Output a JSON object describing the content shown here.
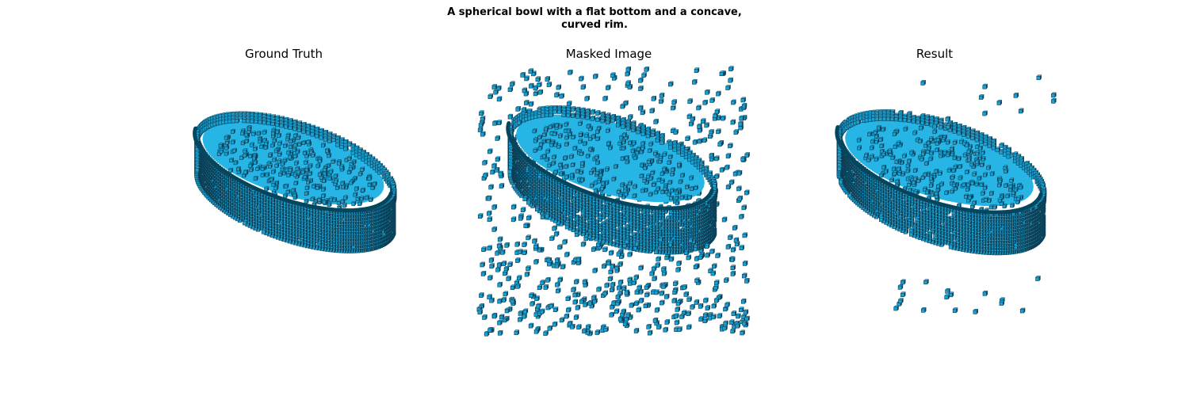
{
  "figure": {
    "title_line1": "A spherical bowl with a flat bottom and a concave,",
    "title_line2": "curved rim."
  },
  "panels": [
    {
      "title": "Ground Truth"
    },
    {
      "title": "Masked Image"
    },
    {
      "title": "Result"
    }
  ],
  "colors": {
    "voxel_face": "#1a9fd1",
    "voxel_top": "#27b5e6",
    "voxel_edge": "#0c3f55",
    "rim_dark": "#05465f"
  }
}
